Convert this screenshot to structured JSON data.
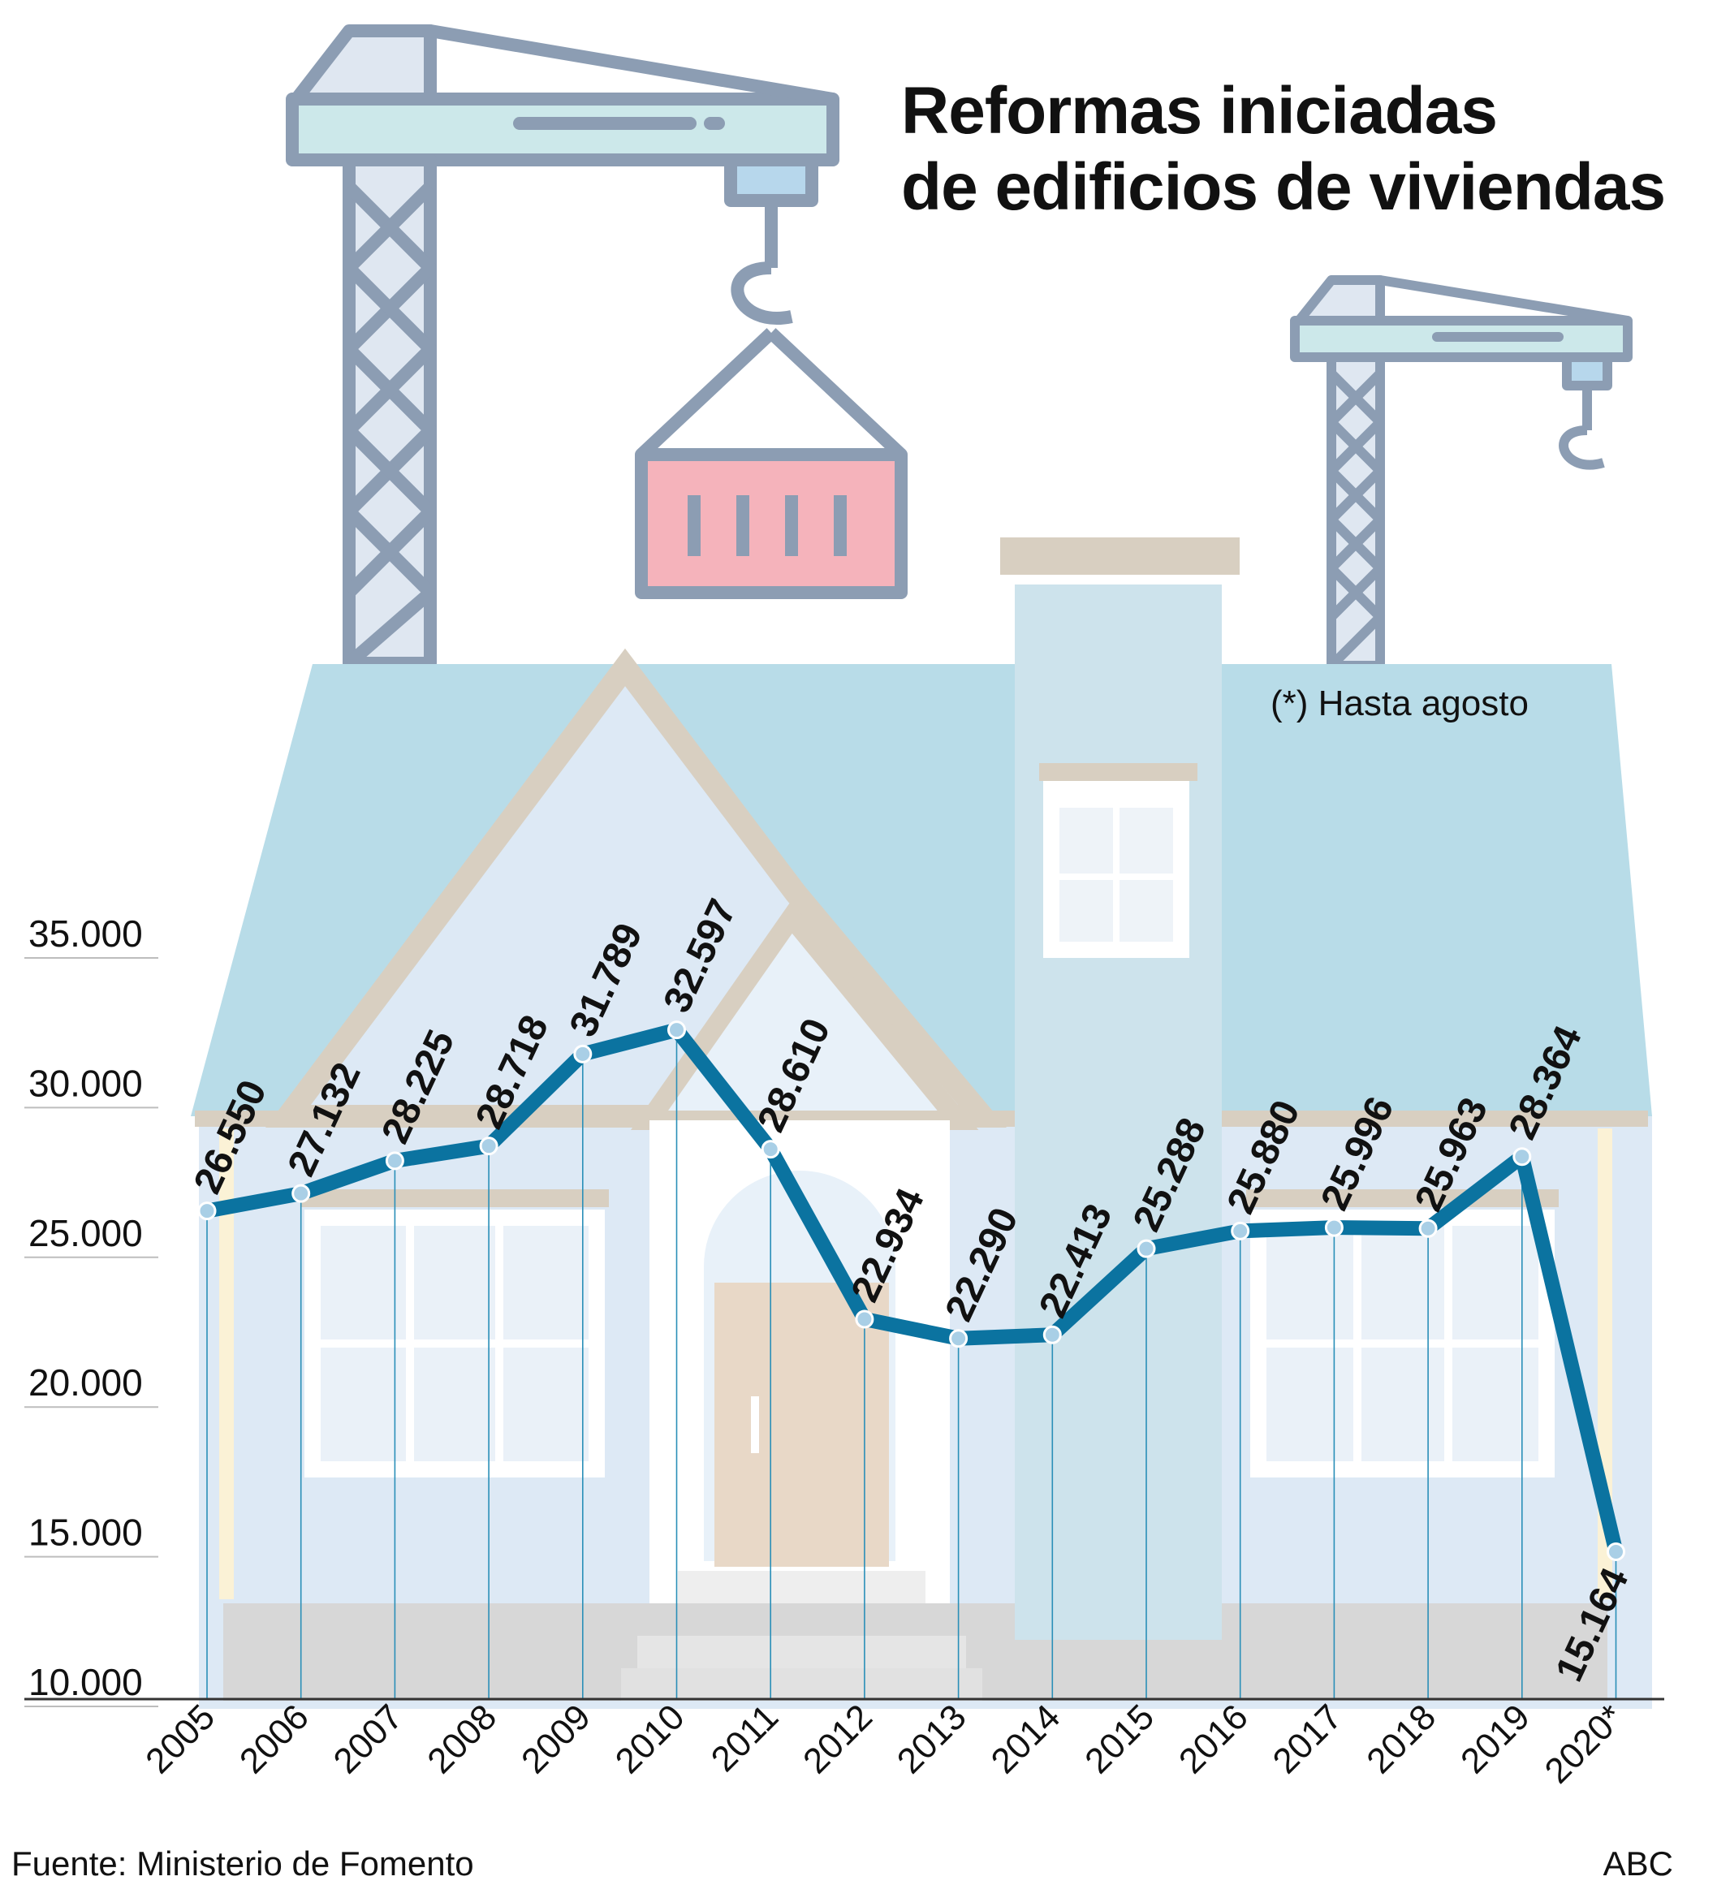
{
  "title_line1": "Reformas iniciadas",
  "title_line2": "de edificios de viviendas",
  "note": "(*) Hasta agosto",
  "source": "Fuente:  Ministerio de Fomento",
  "brand": "ABC",
  "chart_data": {
    "type": "line",
    "title": "Reformas iniciadas de edificios de viviendas",
    "categories": [
      "2005",
      "2006",
      "2007",
      "2008",
      "2009",
      "2010",
      "2011",
      "2012",
      "2013",
      "2014",
      "2015",
      "2016",
      "2017",
      "2018",
      "2019",
      "2020*"
    ],
    "values": [
      26550,
      27132,
      28225,
      28718,
      31789,
      32597,
      28610,
      22934,
      22290,
      22413,
      25288,
      25880,
      25996,
      25963,
      28364,
      15164
    ],
    "value_labels": [
      "26.550",
      "27.132",
      "28.225",
      "28.718",
      "31.789",
      "32.597",
      "28.610",
      "22.934",
      "22.290",
      "22.413",
      "25.288",
      "25.880",
      "25.996",
      "25.963",
      "28.364",
      "15.164"
    ],
    "yticks": [
      10000,
      15000,
      20000,
      25000,
      30000,
      35000
    ],
    "ytick_labels": [
      "10.000",
      "15.000",
      "20.000",
      "25.000",
      "30.000",
      "35.000"
    ],
    "ylim": [
      10000,
      35000
    ],
    "grid": false,
    "line_color": "#0b73a0"
  }
}
